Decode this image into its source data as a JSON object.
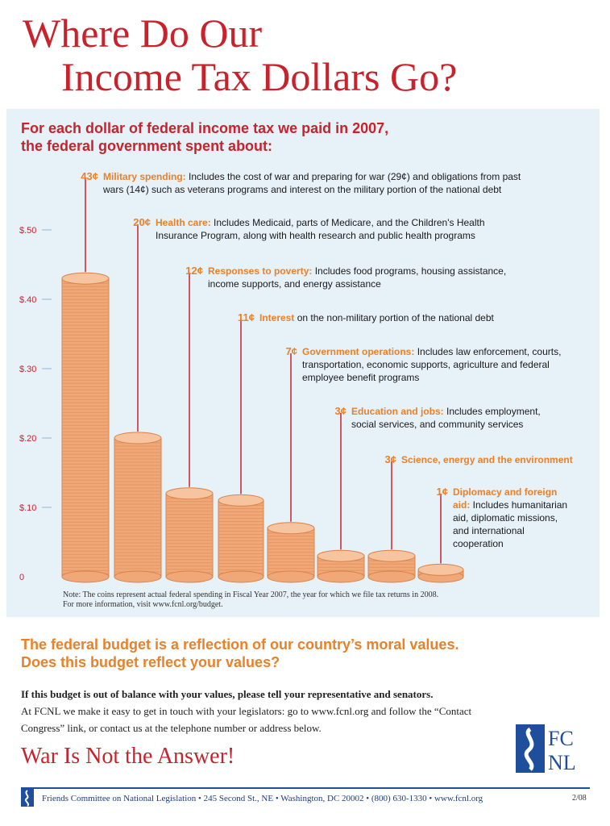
{
  "header": {
    "title_line1": "Where Do Our",
    "title_line2": "Income Tax Dollars Go?",
    "subtitle_line1": "For each dollar of federal income tax we paid in 2007,",
    "subtitle_line2": "the federal government spent about:"
  },
  "colors": {
    "red": "#c8232c",
    "orange": "#e8812a",
    "blue": "#1f4e9c",
    "panel": "#e6f1f8",
    "coin": "#f0a878"
  },
  "chart_data": {
    "type": "bar",
    "title": "",
    "xlabel": "",
    "ylabel": "",
    "ylim": [
      0,
      0.5
    ],
    "yticks": [
      "0",
      "$.10",
      "$.20",
      "$.30",
      "$.40",
      "$.50"
    ],
    "ytick_values": [
      0,
      0.1,
      0.2,
      0.3,
      0.4,
      0.5
    ],
    "grid": false,
    "categories": [
      "Military spending",
      "Health care",
      "Responses to poverty",
      "Interest",
      "Government operations",
      "Education and jobs",
      "Science, energy and the environment",
      "Diplomacy and foreign aid"
    ],
    "values": [
      0.43,
      0.2,
      0.12,
      0.11,
      0.07,
      0.03,
      0.03,
      0.01
    ],
    "annotations": [
      {
        "amount": "43¢",
        "label": "Military spending:",
        "text": " Includes the cost of war and preparing for war (29¢) and obligations from past wars (14¢) such as veterans programs and interest on the military portion of the national debt"
      },
      {
        "amount": "20¢",
        "label": "Health care:",
        "text": " Includes Medicaid, parts of Medicare, and the Children's Health Insurance Program, along with health research and public health programs"
      },
      {
        "amount": "12¢",
        "label": "Responses to poverty:",
        "text": " Includes food programs, housing assistance, income supports, and energy assistance"
      },
      {
        "amount": "11¢",
        "label": "Interest",
        "text": " on the non-military portion of the national debt"
      },
      {
        "amount": "7¢",
        "label": "Government operations:",
        "text": " Includes law enforcement, courts, transportation, economic supports, agriculture and federal employee benefit programs"
      },
      {
        "amount": "3¢",
        "label": "Education and jobs:",
        "text": " Includes employment, social services, and community services"
      },
      {
        "amount": "3¢",
        "label": "Science, energy and the environment",
        "text": ""
      },
      {
        "amount": "1¢",
        "label": "Diplomacy and foreign aid:",
        "text": " Includes humanitarian aid, diplomatic missions, and international cooperation"
      }
    ]
  },
  "note": {
    "line1": "Note: The coins represent actual federal spending in Fiscal Year 2007, the year for which we file tax returns in 2008.",
    "line2": "For more information, visit www.fcnl.org/budget."
  },
  "bottom": {
    "question_line1": "The federal budget is a reflection of our country’s moral values.",
    "question_line2": "Does this budget reflect your values?",
    "body_bold": "If this budget is out of balance with your values, please tell your representative and senators.",
    "body_text": "At FCNL we make it easy to get in touch with your legislators: go to www.fcnl.org and follow the “Contact Congress” link, or contact us at the telephone number or address below.",
    "slogan": "War Is Not the Answer!",
    "logo_text_top": "FC",
    "logo_text_bottom": "NL",
    "footer": "Friends Committee on National Legislation • 245 Second St., NE • Washington, DC 20002 • (800) 630-1330 • www.fcnl.org",
    "footer_date": "2/08"
  }
}
